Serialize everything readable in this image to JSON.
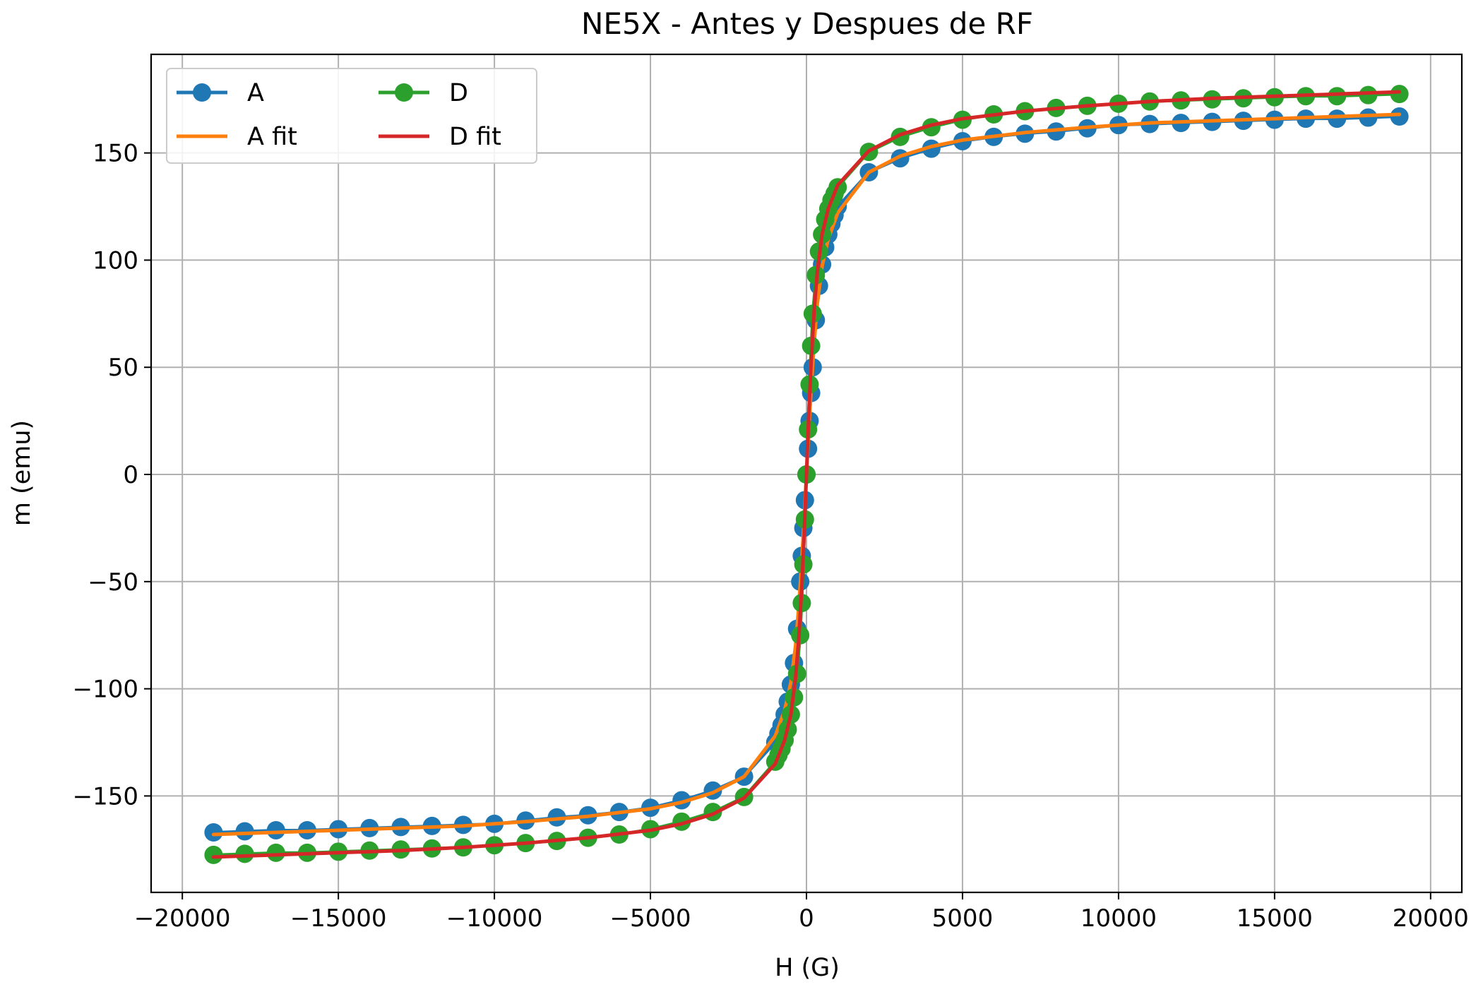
{
  "chart_data": {
    "type": "line",
    "title": "NE5X - Antes y Despues de RF",
    "xlabel": "H (G)",
    "ylabel": "m (emu)",
    "xlim": [
      -21000,
      21000
    ],
    "ylim": [
      -195,
      196
    ],
    "xticks": [
      -20000,
      -15000,
      -10000,
      -5000,
      0,
      5000,
      10000,
      15000,
      20000
    ],
    "xtick_labels": [
      "−20000",
      "−15000",
      "−10000",
      "−5000",
      "0",
      "5000",
      "10000",
      "15000",
      "20000"
    ],
    "yticks": [
      -150,
      -100,
      -50,
      0,
      50,
      100,
      150
    ],
    "ytick_labels": [
      "−150",
      "−100",
      "−50",
      "0",
      "50",
      "100",
      "150"
    ],
    "grid": true,
    "legend": {
      "placement": "upper-left",
      "columns": 2
    },
    "series": [
      {
        "name": "A",
        "kind": "line-markers",
        "color": "#1f77b4",
        "x": [
          -19000,
          -18000,
          -17000,
          -16000,
          -15000,
          -14000,
          -13000,
          -12000,
          -11000,
          -10000,
          -9000,
          -8000,
          -7000,
          -6000,
          -5000,
          -4000,
          -3000,
          -2000,
          -1000,
          -900,
          -800,
          -700,
          -600,
          -500,
          -400,
          -300,
          -200,
          -150,
          -100,
          -50,
          0,
          50,
          100,
          150,
          200,
          300,
          400,
          500,
          600,
          700,
          800,
          900,
          1000,
          2000,
          3000,
          4000,
          5000,
          6000,
          7000,
          8000,
          9000,
          10000,
          11000,
          12000,
          13000,
          14000,
          15000,
          16000,
          17000,
          18000,
          19000
        ],
        "y": [
          -167,
          -166.5,
          -166,
          -166,
          -165.5,
          -165,
          -164.5,
          -164,
          -163.5,
          -163,
          -161.5,
          -160,
          -159,
          -157.5,
          -155.5,
          -152,
          -147.5,
          -141,
          -125,
          -121,
          -117,
          -112,
          -106,
          -98,
          -88,
          -72,
          -50,
          -38,
          -25,
          -12,
          0,
          12,
          25,
          38,
          50,
          72,
          88,
          98,
          106,
          112,
          117,
          121,
          125,
          141,
          147.5,
          152,
          155.5,
          157.5,
          159,
          160,
          161.5,
          163,
          163.5,
          164,
          164.5,
          165,
          165.5,
          166,
          166,
          166.5,
          167
        ]
      },
      {
        "name": "A fit",
        "kind": "line",
        "color": "#ff7f0e",
        "x": [
          -19000,
          -17000,
          -15000,
          -13000,
          -11000,
          -9000,
          -7000,
          -5000,
          -4000,
          -3000,
          -2000,
          -1000,
          -700,
          -500,
          -350,
          -250,
          -150,
          -80,
          0,
          80,
          150,
          250,
          350,
          500,
          700,
          1000,
          2000,
          3000,
          4000,
          5000,
          7000,
          9000,
          11000,
          13000,
          15000,
          17000,
          19000
        ],
        "y": [
          -168,
          -167,
          -166,
          -165,
          -164,
          -162,
          -159.5,
          -156,
          -153,
          -148.5,
          -141,
          -122,
          -110,
          -97,
          -80,
          -62,
          -40,
          -22,
          0,
          22,
          40,
          62,
          80,
          97,
          110,
          122,
          141,
          148.5,
          153,
          156,
          159.5,
          162,
          164,
          165,
          166,
          167,
          168
        ]
      },
      {
        "name": "D",
        "kind": "line-markers",
        "color": "#2ca02c",
        "x": [
          -19000,
          -18000,
          -17000,
          -16000,
          -15000,
          -14000,
          -13000,
          -12000,
          -11000,
          -10000,
          -9000,
          -8000,
          -7000,
          -6000,
          -5000,
          -4000,
          -3000,
          -2000,
          -1000,
          -900,
          -800,
          -700,
          -600,
          -500,
          -400,
          -300,
          -200,
          -150,
          -100,
          -50,
          0,
          50,
          100,
          150,
          200,
          300,
          400,
          500,
          600,
          700,
          800,
          900,
          1000,
          2000,
          3000,
          4000,
          5000,
          6000,
          7000,
          8000,
          9000,
          10000,
          11000,
          12000,
          13000,
          14000,
          15000,
          16000,
          17000,
          18000,
          19000
        ],
        "y": [
          -177.5,
          -177,
          -176.5,
          -176.5,
          -176,
          -175.5,
          -175,
          -174.5,
          -174,
          -173,
          -172,
          -171,
          -169.5,
          -168,
          -165.5,
          -162,
          -157.5,
          -150.5,
          -134,
          -131,
          -128,
          -124,
          -119,
          -112,
          -104,
          -93,
          -75,
          -60,
          -42,
          -21,
          0,
          21,
          42,
          60,
          75,
          93,
          104,
          112,
          119,
          124,
          128,
          131,
          134,
          150.5,
          157.5,
          162,
          165.5,
          168,
          169.5,
          171,
          172,
          173,
          174,
          174.5,
          175,
          175.5,
          176,
          176.5,
          176.5,
          177,
          177.5
        ]
      },
      {
        "name": "D fit",
        "kind": "line",
        "color": "#d62728",
        "x": [
          -19000,
          -17000,
          -15000,
          -13000,
          -11000,
          -9000,
          -7000,
          -5000,
          -4000,
          -3000,
          -2000,
          -1000,
          -700,
          -500,
          -350,
          -250,
          -150,
          -80,
          0,
          80,
          150,
          250,
          350,
          500,
          700,
          1000,
          2000,
          3000,
          4000,
          5000,
          7000,
          9000,
          11000,
          13000,
          15000,
          17000,
          19000
        ],
        "y": [
          -178.5,
          -177.5,
          -176.5,
          -175.5,
          -174,
          -172,
          -169.5,
          -166,
          -163,
          -158.5,
          -151,
          -135,
          -124,
          -112,
          -95,
          -77,
          -52,
          -30,
          0,
          30,
          52,
          77,
          95,
          112,
          124,
          135,
          151,
          158.5,
          163,
          166,
          169.5,
          172,
          174,
          175.5,
          176.5,
          177.5,
          178.5
        ]
      }
    ]
  }
}
